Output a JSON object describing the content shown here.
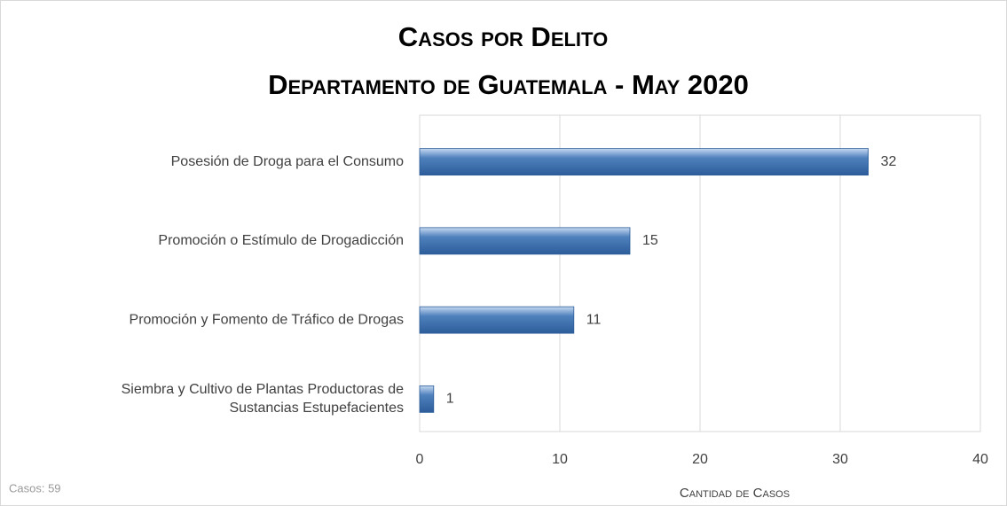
{
  "chart_data": {
    "type": "bar",
    "orientation": "horizontal",
    "title": "Casos por Delito",
    "subtitle": "Departamento de Guatemala - May 2020",
    "categories": [
      "Posesión de Droga para el Consumo",
      "Promoción o Estímulo de Drogadicción",
      "Promoción y Fomento de Tráfico de Drogas",
      "Siembra y Cultivo de Plantas Productoras de\nSustancias Estupefacientes"
    ],
    "values": [
      32,
      15,
      11,
      1
    ],
    "color": "#4f81bd",
    "xlim": [
      0,
      40
    ],
    "xticks": [
      0,
      10,
      20,
      30,
      40
    ],
    "xlabel": "Cantidad de Casos",
    "note": "Casos: 59",
    "grid": true
  }
}
